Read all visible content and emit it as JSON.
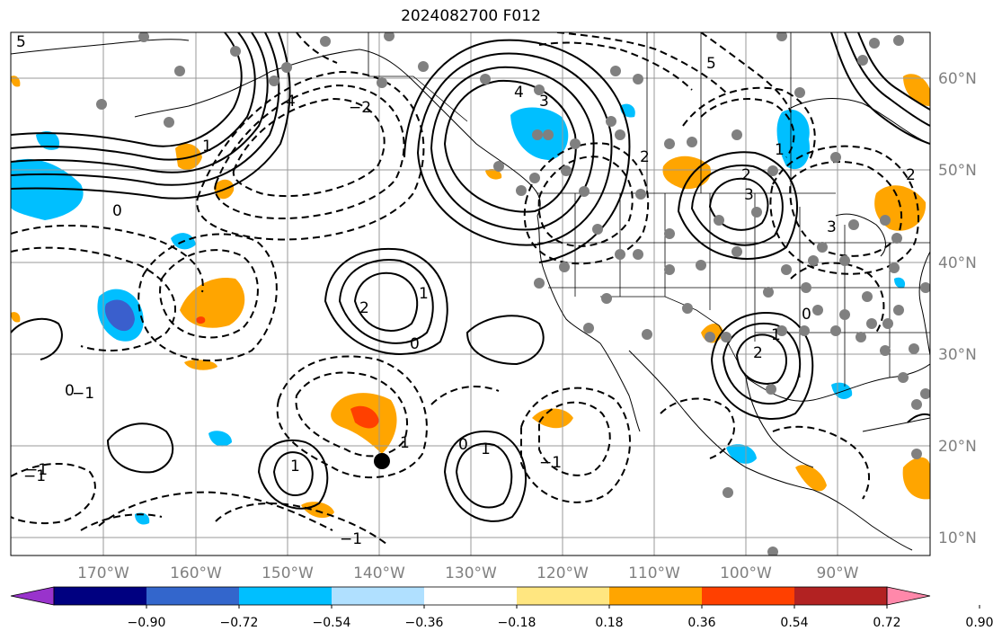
{
  "title": "2024082700 F012",
  "lon_labels": [
    "170°W",
    "160°W",
    "150°W",
    "140°W",
    "130°W",
    "120°W",
    "110°W",
    "100°W",
    "90°W"
  ],
  "lat_labels": [
    "60°N",
    "50°N",
    "40°N",
    "30°N",
    "20°N",
    "10°N"
  ],
  "colorbar": {
    "ticks": [
      "−0.90",
      "−0.72",
      "−0.54",
      "−0.36",
      "−0.18",
      "0.18",
      "0.36",
      "0.54",
      "0.72",
      "0.90"
    ],
    "colors": [
      "#9933cc",
      "#000080",
      "#3366cc",
      "#00bfff",
      "#b0e0ff",
      "#ffffff",
      "#ffe680",
      "#ffa500",
      "#ff4000",
      "#b22222",
      "#ff88aa"
    ]
  },
  "contour_labels": [
    "5",
    "4",
    "3",
    "2",
    "1",
    "0",
    "−1",
    "2",
    "1",
    "0",
    "1",
    "−1",
    "3",
    "2",
    "1",
    "0",
    "1",
    "2",
    "−1",
    "−1",
    "0",
    "1",
    "0",
    "−1",
    "4",
    "5",
    "1",
    "3",
    "2",
    "−2"
  ],
  "marker": {
    "name": "black-dot"
  }
}
